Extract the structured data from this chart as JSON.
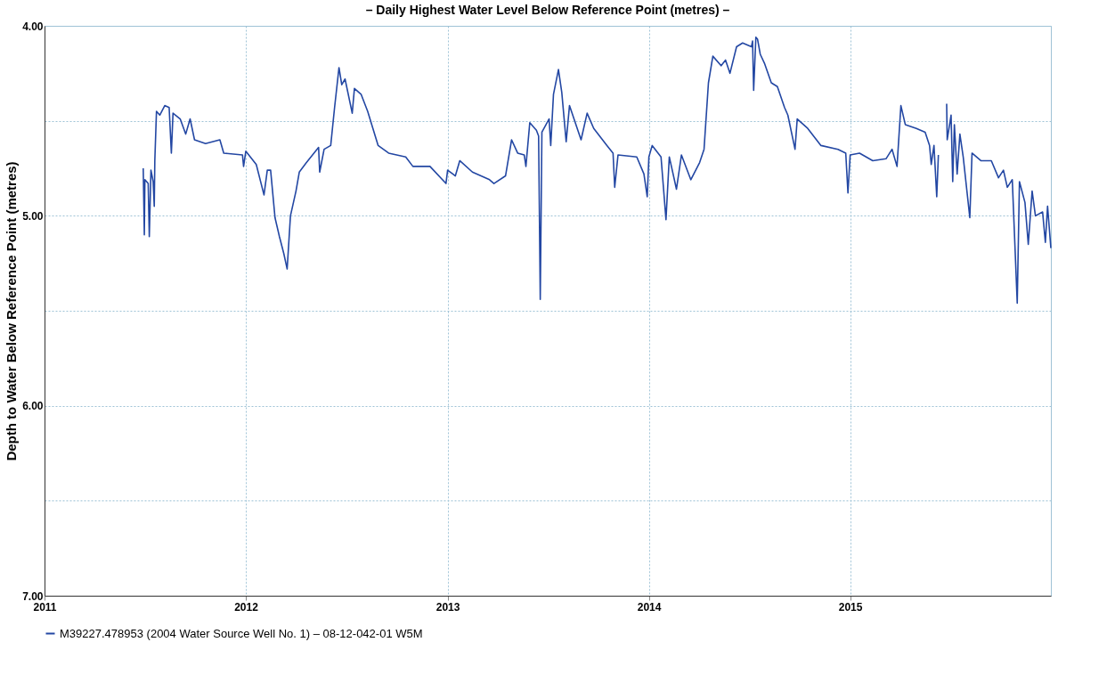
{
  "chart_data": {
    "type": "line",
    "title": "– Daily Highest Water Level Below Reference Point (metres) –",
    "ylabel": "Depth to Water Below Reference Point (metres)",
    "x": [
      "2011-06-29",
      "2011-07-01",
      "2011-07-02",
      "2011-07-08",
      "2011-07-10",
      "2011-07-13",
      "2011-07-17",
      "2011-07-19",
      "2011-07-20",
      "2011-07-23",
      "2011-07-29",
      "2011-08-07",
      "2011-08-15",
      "2011-08-19",
      "2011-08-22",
      "2011-09-04",
      "2011-09-14",
      "2011-09-22",
      "2011-09-30",
      "2011-10-20",
      "2011-11-15",
      "2011-11-22",
      "2011-12-26",
      "2011-12-28",
      "2012-01-01",
      "2012-01-20",
      "2012-02-03",
      "2012-02-09",
      "2012-02-15",
      "2012-02-23",
      "2012-03-02",
      "2012-03-10",
      "2012-03-16",
      "2012-03-22",
      "2012-04-01",
      "2012-04-07",
      "2012-04-20",
      "2012-05-01",
      "2012-05-12",
      "2012-05-14",
      "2012-05-22",
      "2012-06-03",
      "2012-06-10",
      "2012-06-18",
      "2012-06-23",
      "2012-06-29",
      "2012-07-12",
      "2012-07-16",
      "2012-07-28",
      "2012-08-09",
      "2012-08-28",
      "2012-09-16",
      "2012-10-17",
      "2012-10-30",
      "2012-11-30",
      "2012-12-29",
      "2013-01-01",
      "2013-01-15",
      "2013-01-23",
      "2013-02-15",
      "2013-03-18",
      "2013-03-26",
      "2013-04-16",
      "2013-04-27",
      "2013-05-08",
      "2013-05-20",
      "2013-05-23",
      "2013-05-30",
      "2013-06-11",
      "2013-06-15",
      "2013-06-18",
      "2013-06-21",
      "2013-07-04",
      "2013-07-07",
      "2013-07-12",
      "2013-07-21",
      "2013-07-27",
      "2013-08-04",
      "2013-08-10",
      "2013-08-31",
      "2013-09-11",
      "2013-09-23",
      "2013-10-17",
      "2013-10-28",
      "2013-10-31",
      "2013-11-06",
      "2013-12-10",
      "2013-12-23",
      "2013-12-29",
      "2014-01-01",
      "2014-01-07",
      "2014-01-23",
      "2014-02-01",
      "2014-02-07",
      "2014-02-20",
      "2014-03-01",
      "2014-03-18",
      "2014-04-03",
      "2014-04-11",
      "2014-04-19",
      "2014-04-27",
      "2014-05-12",
      "2014-05-20",
      "2014-05-28",
      "2014-06-09",
      "2014-06-20",
      "2014-07-06",
      "2014-07-08",
      "2014-07-10",
      "2014-07-14",
      "2014-07-17",
      "2014-07-22",
      "2014-07-30",
      "2014-08-11",
      "2014-08-22",
      "2014-09-04",
      "2014-09-10",
      "2014-09-23",
      "2014-09-27",
      "2014-10-16",
      "2014-11-09",
      "2014-12-10",
      "2014-12-24",
      "2014-12-28",
      "2015-01-01",
      "2015-01-18",
      "2015-02-11",
      "2015-03-07",
      "2015-03-18",
      "2015-03-27",
      "2015-04-03",
      "2015-04-11",
      "2015-05-01",
      "2015-05-17",
      "2015-05-25",
      "2015-05-28",
      "2015-06-02",
      "2015-06-07",
      "2015-06-10",
      "2015-06-15",
      "2015-06-25",
      "2015-06-26",
      "2015-07-03",
      "2015-07-06",
      "2015-07-09",
      "2015-07-14",
      "2015-07-19",
      "2015-07-25",
      "2015-08-06",
      "2015-08-10",
      "2015-08-26",
      "2015-09-14",
      "2015-09-27",
      "2015-10-06",
      "2015-10-13",
      "2015-10-22",
      "2015-10-31",
      "2015-11-04",
      "2015-11-14",
      "2015-11-20",
      "2015-11-27",
      "2015-12-03",
      "2015-12-16",
      "2015-12-21",
      "2015-12-25",
      "2015-12-31"
    ],
    "series": [
      {
        "name": "M39227.478953 (2004 Water Source Well No. 1)  – 08-12-042-01 W5M",
        "color": "#2347a3",
        "values": [
          4.75,
          5.1,
          4.81,
          4.83,
          5.11,
          4.76,
          4.82,
          4.95,
          4.71,
          4.45,
          4.47,
          4.42,
          4.43,
          4.67,
          4.46,
          4.49,
          4.57,
          4.49,
          4.6,
          4.62,
          4.6,
          4.67,
          4.68,
          4.74,
          4.66,
          4.73,
          4.89,
          4.76,
          4.76,
          5.01,
          5.11,
          5.2,
          5.28,
          5.0,
          4.87,
          4.77,
          4.72,
          4.68,
          4.64,
          4.77,
          4.65,
          4.63,
          4.43,
          4.22,
          4.31,
          4.28,
          4.46,
          4.33,
          4.36,
          4.45,
          4.63,
          4.67,
          4.69,
          4.74,
          4.74,
          4.83,
          4.76,
          4.79,
          4.71,
          4.77,
          4.81,
          4.83,
          4.79,
          4.6,
          4.67,
          4.68,
          4.74,
          4.51,
          4.55,
          4.58,
          5.44,
          4.56,
          4.49,
          4.63,
          4.36,
          4.23,
          4.35,
          4.61,
          4.42,
          4.6,
          4.46,
          4.54,
          4.63,
          4.67,
          4.85,
          4.68,
          4.69,
          4.78,
          4.9,
          4.69,
          4.63,
          4.69,
          5.02,
          4.69,
          4.86,
          4.68,
          4.81,
          4.72,
          4.65,
          4.3,
          4.16,
          4.21,
          4.18,
          4.25,
          4.11,
          4.09,
          4.11,
          4.08,
          4.34,
          4.06,
          4.07,
          4.15,
          4.2,
          4.3,
          4.32,
          4.43,
          4.47,
          4.65,
          4.49,
          4.54,
          4.63,
          4.65,
          4.67,
          4.88,
          4.68,
          4.67,
          4.71,
          4.7,
          4.65,
          4.74,
          4.42,
          4.52,
          4.54,
          4.56,
          4.63,
          4.73,
          4.63,
          4.9,
          4.68,
          null,
          4.41,
          4.6,
          4.47,
          4.82,
          4.52,
          4.78,
          4.57,
          4.69,
          5.01,
          4.67,
          4.71,
          4.71,
          4.8,
          4.76,
          4.85,
          4.81,
          5.46,
          4.82,
          4.93,
          5.15,
          4.87,
          5.0,
          4.98,
          5.14,
          4.95,
          5.17
        ]
      }
    ],
    "xlim": [
      "2011-01-01",
      "2015-12-31"
    ],
    "xticks": [
      "2011",
      "2012",
      "2013",
      "2014",
      "2015"
    ],
    "ylim": [
      7,
      4
    ],
    "yticks": [
      {
        "value": 4,
        "label": "4.00"
      },
      {
        "value": 4.5,
        "label": null
      },
      {
        "value": 5,
        "label": "5.00"
      },
      {
        "value": 5.5,
        "label": null
      },
      {
        "value": 6,
        "label": "6.00"
      },
      {
        "value": 6.5,
        "label": null
      },
      {
        "value": 7,
        "label": "7.00"
      }
    ],
    "grid": true,
    "legend": "bottom",
    "line_style": "solid",
    "marker": "none"
  }
}
